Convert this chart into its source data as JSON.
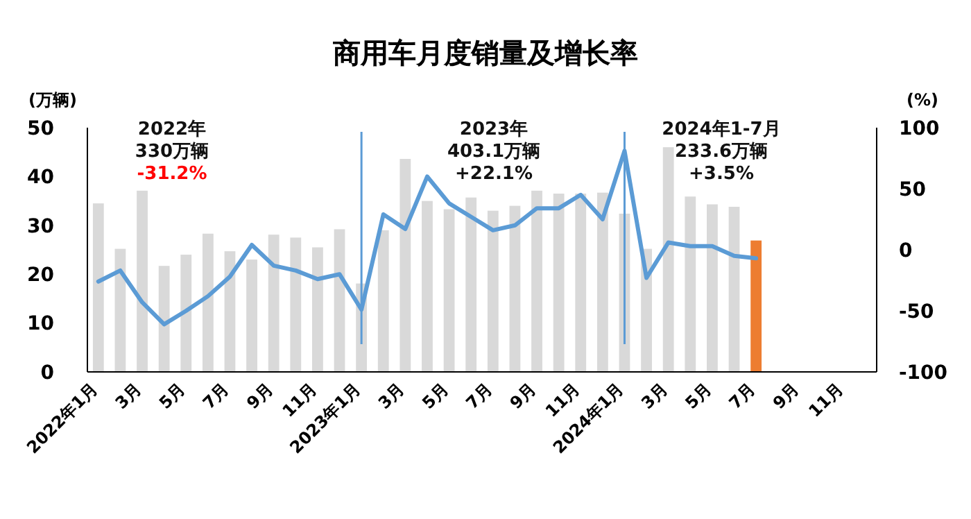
{
  "chart_data": {
    "type": "bar",
    "title": "商用车月度销量及增长率",
    "ylabel": "(万辆)",
    "y2label": "(%)",
    "categories": [
      "2022年1月",
      null,
      "3月",
      null,
      "5月",
      null,
      "7月",
      null,
      "9月",
      null,
      "11月",
      null,
      "2023年1月",
      null,
      "3月",
      null,
      "5月",
      null,
      "7月",
      null,
      "9月",
      null,
      "11月",
      null,
      "2024年1月",
      null,
      "3月",
      null,
      "5月",
      null,
      "7月",
      null,
      "9月",
      null,
      "11月",
      null
    ],
    "series": [
      {
        "colors": [
          "#d9d9d9",
          "#d9d9d9",
          "#d9d9d9",
          "#d9d9d9",
          "#d9d9d9",
          "#d9d9d9",
          "#d9d9d9",
          "#d9d9d9",
          "#d9d9d9",
          "#d9d9d9",
          "#d9d9d9",
          "#d9d9d9",
          "#d9d9d9",
          "#d9d9d9",
          "#d9d9d9",
          "#d9d9d9",
          "#d9d9d9",
          "#d9d9d9",
          "#d9d9d9",
          "#d9d9d9",
          "#d9d9d9",
          "#d9d9d9",
          "#d9d9d9",
          "#d9d9d9",
          "#d9d9d9",
          "#d9d9d9",
          "#d9d9d9",
          "#d9d9d9",
          "#d9d9d9",
          "#d9d9d9",
          "#ed7d31",
          null,
          null,
          null,
          null,
          null
        ],
        "values": [
          34.5,
          25.2,
          37.1,
          21.7,
          24,
          28.3,
          24.7,
          23,
          28.1,
          27.5,
          25.5,
          29.2,
          18.1,
          29,
          43.6,
          35,
          33.3,
          35.7,
          33,
          34,
          37.1,
          36.5,
          36.5,
          36.7,
          32.4,
          25.2,
          46,
          35.9,
          34.3,
          33.8,
          26.9,
          null,
          null,
          null,
          null,
          null
        ]
      },
      {
        "type": "line",
        "axis": "y2",
        "color": "#5b9bd5",
        "values": [
          -26,
          -17,
          -43,
          -61,
          -50,
          -38,
          -22,
          4,
          -13,
          -17,
          -24,
          -20,
          -49,
          29,
          17,
          60,
          38,
          27,
          16,
          20,
          34,
          34,
          45,
          25,
          81,
          -23,
          6,
          3,
          3,
          -5,
          -7,
          null,
          null,
          null,
          null,
          null
        ]
      }
    ],
    "ylim": [
      0,
      50
    ],
    "yticks": [
      0,
      10,
      20,
      30,
      40,
      50
    ],
    "y2lim": [
      -100,
      100
    ],
    "y2ticks": [
      -100,
      -50,
      0,
      50,
      100
    ],
    "ref_lines": [
      {
        "axis": "x",
        "value": "2023年1月",
        "color": "#5b9bd5"
      },
      {
        "axis": "x",
        "value": "2024年1月",
        "color": "#5b9bd5"
      }
    ],
    "annotations": [
      "2022年",
      "330万辆",
      "-31.2%",
      "2023年",
      "403.1万辆",
      "+22.1%",
      "2024年1-7月",
      "233.6万辆",
      "+3.5%"
    ],
    "grid": false
  }
}
